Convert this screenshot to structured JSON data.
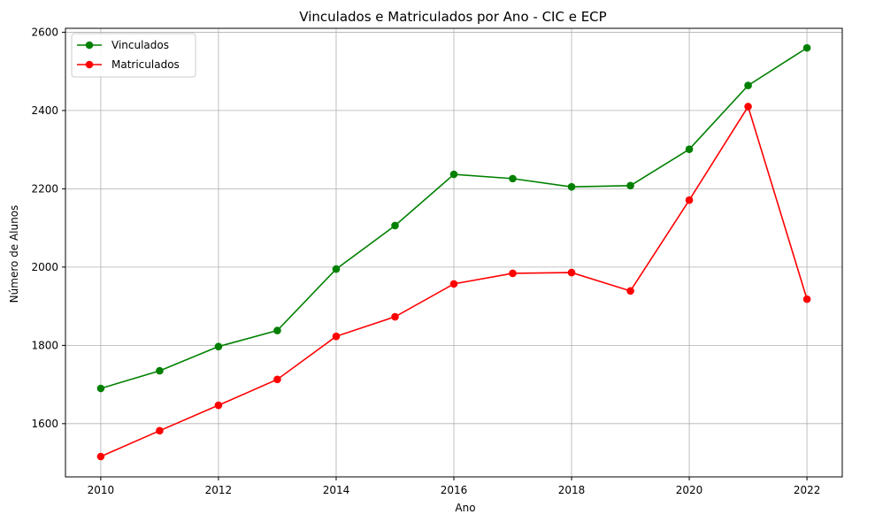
{
  "chart_data": {
    "type": "line",
    "title": "Vinculados e Matriculados por Ano - CIC e ECP",
    "xlabel": "Ano",
    "ylabel": "Número de Alunos",
    "x": [
      2010,
      2011,
      2012,
      2013,
      2014,
      2015,
      2016,
      2017,
      2018,
      2019,
      2020,
      2021,
      2022
    ],
    "xlim": [
      2009.4,
      2022.6
    ],
    "ylim": [
      1464,
      2610
    ],
    "xticks": [
      2010,
      2012,
      2014,
      2016,
      2018,
      2020,
      2022
    ],
    "yticks": [
      1600,
      1800,
      2000,
      2200,
      2400,
      2600
    ],
    "grid": true,
    "legend_position": "top-left",
    "series": [
      {
        "name": "Vinculados",
        "color": "#008000",
        "values": [
          1690,
          1735,
          1797,
          1838,
          1995,
          2106,
          2237,
          2226,
          2205,
          2208,
          2301,
          2464,
          2560
        ]
      },
      {
        "name": "Matriculados",
        "color": "#ff0000",
        "values": [
          1516,
          1582,
          1647,
          1713,
          1823,
          1873,
          1957,
          1984,
          1986,
          1939,
          2171,
          2410,
          1918
        ]
      }
    ]
  }
}
